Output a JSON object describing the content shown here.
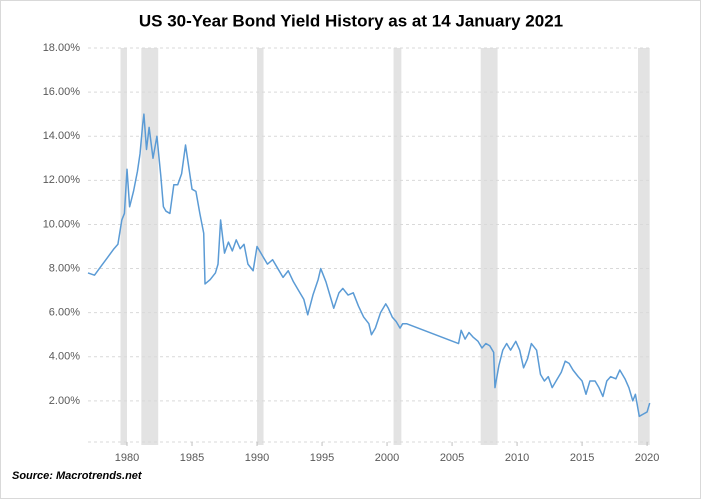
{
  "chart_data": {
    "type": "line",
    "title": "US 30-Year Bond Yield History as at 14 January 2021",
    "source": "Source: Macrotrends.net",
    "color": "#5b9bd5",
    "shade_color": "#e3e3e3",
    "grid": true,
    "shaded_ranges": [
      [
        1979.5,
        1980.0
      ],
      [
        1981.1,
        1982.4
      ],
      [
        1990.0,
        1990.5
      ],
      [
        2000.5,
        2001.1
      ],
      [
        2007.2,
        2008.5
      ],
      [
        2019.3,
        2020.2
      ]
    ],
    "x": [
      1977.0,
      1977.5,
      1978.0,
      1978.5,
      1979.0,
      1979.3,
      1979.6,
      1979.8,
      1980.0,
      1980.2,
      1980.5,
      1980.8,
      1981.0,
      1981.2,
      1981.3,
      1981.5,
      1981.7,
      1982.0,
      1982.3,
      1982.6,
      1982.8,
      1983.0,
      1983.3,
      1983.6,
      1983.9,
      1984.2,
      1984.5,
      1984.8,
      1985.0,
      1985.3,
      1985.6,
      1985.9,
      1986.0,
      1986.4,
      1986.8,
      1987.0,
      1987.2,
      1987.5,
      1987.8,
      1988.1,
      1988.4,
      1988.7,
      1989.0,
      1989.3,
      1989.7,
      1990.0,
      1990.4,
      1990.8,
      1991.2,
      1991.6,
      1992.0,
      1992.4,
      1992.8,
      1993.2,
      1993.6,
      1993.9,
      1994.3,
      1994.7,
      1994.9,
      1995.3,
      1995.6,
      1995.9,
      1996.3,
      1996.6,
      1997.0,
      1997.4,
      1997.8,
      1998.2,
      1998.6,
      1998.8,
      1999.1,
      1999.5,
      1999.9,
      2000.1,
      2000.4,
      2000.7,
      2001.0,
      2001.2,
      2001.5,
      2005.5,
      2005.7,
      2006.0,
      2006.3,
      2006.6,
      2007.0,
      2007.3,
      2007.6,
      2007.9,
      2008.2,
      2008.3,
      2008.6,
      2008.9,
      2009.2,
      2009.5,
      2009.9,
      2010.2,
      2010.5,
      2010.8,
      2011.1,
      2011.5,
      2011.8,
      2012.1,
      2012.4,
      2012.7,
      2013.0,
      2013.4,
      2013.7,
      2014.0,
      2014.3,
      2014.7,
      2015.0,
      2015.3,
      2015.6,
      2016.0,
      2016.3,
      2016.6,
      2016.9,
      2017.2,
      2017.6,
      2017.9,
      2018.3,
      2018.6,
      2018.9,
      2019.1,
      2019.4,
      2019.7,
      2020.0,
      2020.2
    ],
    "values": [
      7.8,
      7.7,
      8.1,
      8.5,
      8.9,
      9.1,
      10.2,
      10.5,
      12.5,
      10.8,
      11.5,
      12.4,
      13.2,
      14.5,
      15.0,
      13.4,
      14.4,
      13.0,
      14.0,
      12.2,
      10.8,
      10.6,
      10.5,
      11.8,
      11.8,
      12.3,
      13.6,
      12.4,
      11.6,
      11.5,
      10.5,
      9.6,
      7.3,
      7.5,
      7.8,
      8.2,
      10.2,
      8.7,
      9.2,
      8.8,
      9.3,
      8.9,
      9.1,
      8.2,
      7.9,
      9.0,
      8.6,
      8.2,
      8.4,
      8.0,
      7.6,
      7.9,
      7.4,
      7.0,
      6.6,
      5.9,
      6.8,
      7.5,
      8.0,
      7.4,
      6.8,
      6.2,
      6.9,
      7.1,
      6.8,
      6.9,
      6.3,
      5.8,
      5.5,
      5.0,
      5.3,
      6.0,
      6.4,
      6.2,
      5.8,
      5.6,
      5.3,
      5.5,
      5.5,
      4.6,
      5.2,
      4.8,
      5.1,
      4.9,
      4.7,
      4.4,
      4.6,
      4.5,
      4.2,
      2.6,
      3.6,
      4.3,
      4.6,
      4.3,
      4.7,
      4.3,
      3.5,
      3.9,
      4.6,
      4.3,
      3.2,
      2.9,
      3.1,
      2.6,
      2.9,
      3.3,
      3.8,
      3.7,
      3.4,
      3.1,
      2.9,
      2.3,
      2.9,
      2.9,
      2.6,
      2.2,
      2.9,
      3.1,
      3.0,
      3.4,
      3.0,
      2.6,
      2.0,
      2.3,
      1.3,
      1.4,
      1.5,
      1.9
    ],
    "xlim": [
      1977.0,
      2020.3
    ],
    "xticks": [
      1980,
      1985,
      1990,
      1995,
      2000,
      2005,
      2010,
      2015,
      2020
    ],
    "ylim": [
      0,
      18
    ],
    "yticks": [
      {
        "value": 2,
        "label": "2.00%"
      },
      {
        "value": 4,
        "label": "4.00%"
      },
      {
        "value": 6,
        "label": "6.00%"
      },
      {
        "value": 8,
        "label": "8.00%"
      },
      {
        "value": 10,
        "label": "10.00%"
      },
      {
        "value": 12,
        "label": "12.00%"
      },
      {
        "value": 14,
        "label": "14.00%"
      },
      {
        "value": 16,
        "label": "16.00%"
      },
      {
        "value": 18,
        "label": "18.00%"
      }
    ]
  }
}
